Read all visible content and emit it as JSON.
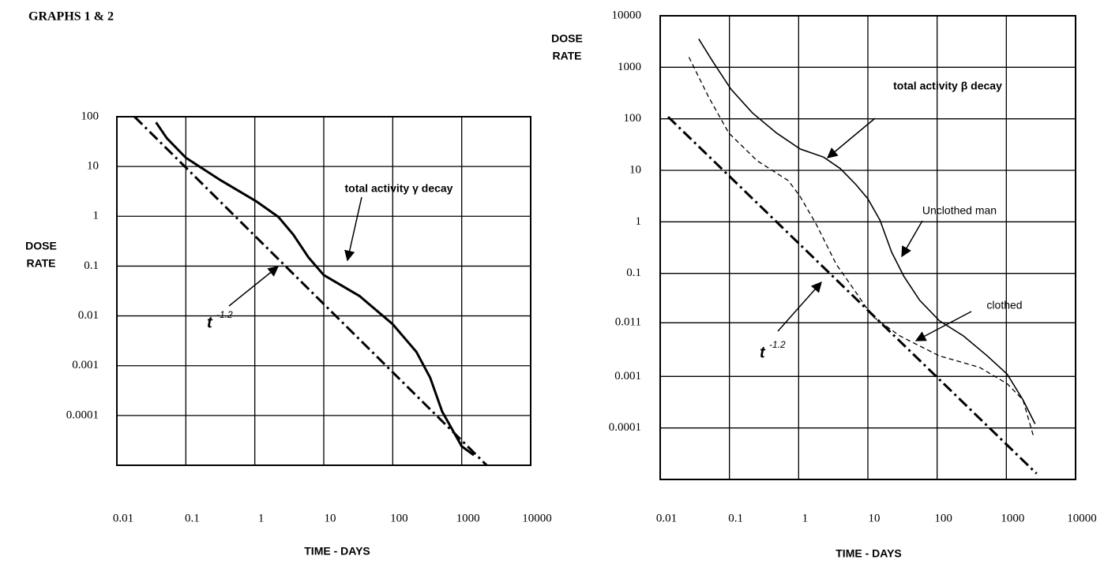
{
  "title": "GRAPHS 1 & 2",
  "chart_data": [
    {
      "type": "line",
      "log_x": true,
      "log_y": true,
      "grid": true,
      "x_label": "TIME - DAYS",
      "y_label": [
        "DOSE",
        "RATE"
      ],
      "xlim": [
        0.01,
        10000
      ],
      "ylim": [
        1e-05,
        100
      ],
      "xticks": [
        0.01,
        0.1,
        1,
        10,
        100,
        1000,
        10000
      ],
      "yticks": [
        100,
        10,
        1,
        0.1,
        0.01,
        0.001,
        0.0001
      ],
      "series": [
        {
          "style": "solid",
          "color": "#000000",
          "x": [
            0.037,
            0.053,
            0.1,
            0.32,
            1.05,
            2.2,
            3.6,
            6,
            10,
            33,
            100,
            220,
            350,
            520,
            1000,
            1500
          ],
          "values": [
            77,
            37,
            15,
            5.3,
            2,
            0.97,
            0.43,
            0.15,
            0.066,
            0.025,
            0.0068,
            0.0019,
            0.00057,
            0.00012,
            2.4e-05,
            1.6e-05
          ]
        },
        {
          "style": "dash-dot",
          "color": "#000000",
          "x": [
            0.018,
            2300
          ],
          "values": [
            100,
            1e-05
          ]
        }
      ],
      "annotations": [
        {
          "text": "total activity γ decay"
        },
        {
          "text": "t",
          "superscript": "-1.2"
        }
      ]
    },
    {
      "type": "line",
      "log_x": true,
      "log_y": true,
      "grid": true,
      "x_label": "TIME - DAYS",
      "y_label": [
        "DOSE",
        "RATE"
      ],
      "xlim": [
        0.01,
        10000
      ],
      "ylim": [
        1e-05,
        10000
      ],
      "xticks": [
        0.01,
        0.1,
        1,
        10,
        100,
        1000,
        10000
      ],
      "yticks": [
        10000,
        1000,
        100,
        10,
        1,
        0.1,
        0.011,
        0.001,
        0.0001
      ],
      "series": [
        {
          "style": "solid",
          "color": "#000000",
          "x": [
            0.036,
            0.057,
            0.105,
            0.215,
            0.48,
            1.05,
            2.3,
            4.0,
            6.7,
            10,
            15,
            22,
            33,
            56,
            108,
            240,
            530,
            1030,
            1740,
            2600
          ],
          "values": [
            3560,
            1315,
            378,
            130,
            53,
            26,
            18,
            10.8,
            5.3,
            2.8,
            1.07,
            0.26,
            0.088,
            0.03,
            0.012,
            0.0061,
            0.0025,
            0.0011,
            0.00035,
            0.00012
          ]
        },
        {
          "style": "dashed",
          "color": "#000000",
          "x": [
            0.026,
            0.05,
            0.098,
            0.25,
            0.71,
            1.05,
            1.8,
            3.5,
            6.7,
            11.4,
            29,
            108,
            410,
            1030,
            1740,
            2460
          ],
          "values": [
            1570,
            265,
            53,
            15.4,
            6.3,
            3.1,
            0.89,
            0.15,
            0.043,
            0.015,
            0.0061,
            0.0025,
            0.0015,
            0.00072,
            0.00035,
            7e-05
          ]
        },
        {
          "style": "dash-dot",
          "color": "#000000",
          "x": [
            0.013,
            2740
          ],
          "values": [
            109,
            1.3e-05
          ]
        }
      ],
      "annotations": [
        {
          "text": "total activity β decay"
        },
        {
          "text": "Unclothed man"
        },
        {
          "text": "clothed"
        },
        {
          "text": "t",
          "superscript": "-1.2"
        }
      ]
    }
  ]
}
